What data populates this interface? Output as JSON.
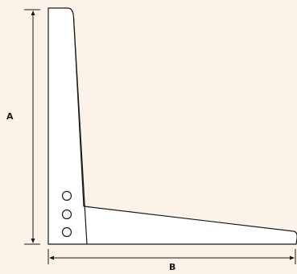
{
  "diagram": {
    "background": "#fbf3e7",
    "shape_fill": "#ffffff",
    "stroke": "#1a1a1a",
    "dimensions": {
      "a_label": "A",
      "b_label": "B"
    },
    "holes": [
      "hole",
      "hole",
      "hole"
    ]
  }
}
